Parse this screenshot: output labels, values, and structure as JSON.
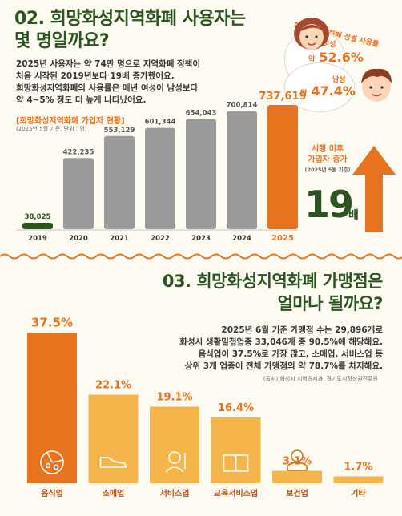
{
  "section1": {
    "title_lines": [
      "02. 희망화성지역화폐 사용자는",
      "몇 명일까요?"
    ],
    "desc_lines": [
      "2025년 사용자는 약 74만 명으로 지역화폐 정책이",
      "처음 시작된 2019년보다 19배 증가했어요.",
      "희망화성지역화폐의 사용률은 매년 여성이 남성보다",
      "약 4~5% 정도 더 높게 나타났어요."
    ],
    "chart_label": "[희망화성지역화폐 가입자 현황]",
    "chart_note": "(2025년 5월 기준, 단위 : 명)",
    "gender": {
      "title": "화성시 지역화폐 성별 사용률",
      "female_label": "여성",
      "female_prefix": "약",
      "female_value": "52.6%",
      "male_label": "남성",
      "male_prefix": "약",
      "male_value": "47.4%"
    },
    "increase": {
      "line1": "시행 이후",
      "line2": "가입자 증가",
      "note": "(2025년 5월 기준)",
      "multiple": "19",
      "unit": "배"
    }
  },
  "section2": {
    "title_lines": [
      "03. 희망화성지역화폐 가맹점은",
      "얼마나 될까요?"
    ],
    "desc_lines": [
      "2025년 6월 기준 가맹점 수는 29,896개로",
      "화성시 생활밀접업종 33,046개 중 90.5%에 해당해요.",
      "음식업이 37.5%로 가장 많고, 소매업, 서비스업 등",
      "상위 3개 업종이 전체 가맹점의 약 78.7%를 차지해요."
    ],
    "source": "(출처) 화성시 지역경제과, 경기도시장상권진흥원"
  },
  "colors": {
    "green": "#2c5420",
    "orange": "#e8731f",
    "gray": "#9a9a9a",
    "yellow": "#f4b64a"
  },
  "chart_data": [
    {
      "type": "bar",
      "categories": [
        "2019",
        "2020",
        "2021",
        "2022",
        "2023",
        "2024",
        "2025"
      ],
      "values": [
        38025,
        422235,
        553129,
        601344,
        654043,
        700814,
        737619
      ],
      "value_labels": [
        "38,025",
        "422,235",
        "553,129",
        "601,344",
        "654,043",
        "700,814",
        "737,619"
      ],
      "title": "[희망화성지역화폐 가입자 현황]",
      "ylim": [
        0,
        800000
      ]
    },
    {
      "type": "bar",
      "categories": [
        "음식업",
        "소매업",
        "서비스업",
        "교육서비스업",
        "보건업",
        "기타"
      ],
      "values": [
        37.5,
        22.1,
        19.1,
        16.4,
        3.1,
        1.7
      ],
      "value_labels": [
        "37.5%",
        "22.1%",
        "19.1%",
        "16.4%",
        "3.1%",
        "1.7%"
      ],
      "icons": [
        "pizza-icon",
        "shoe-icon",
        "barber-icon",
        "book-icon",
        "doctor-icon",
        ""
      ],
      "ylim": [
        0,
        40
      ]
    }
  ]
}
